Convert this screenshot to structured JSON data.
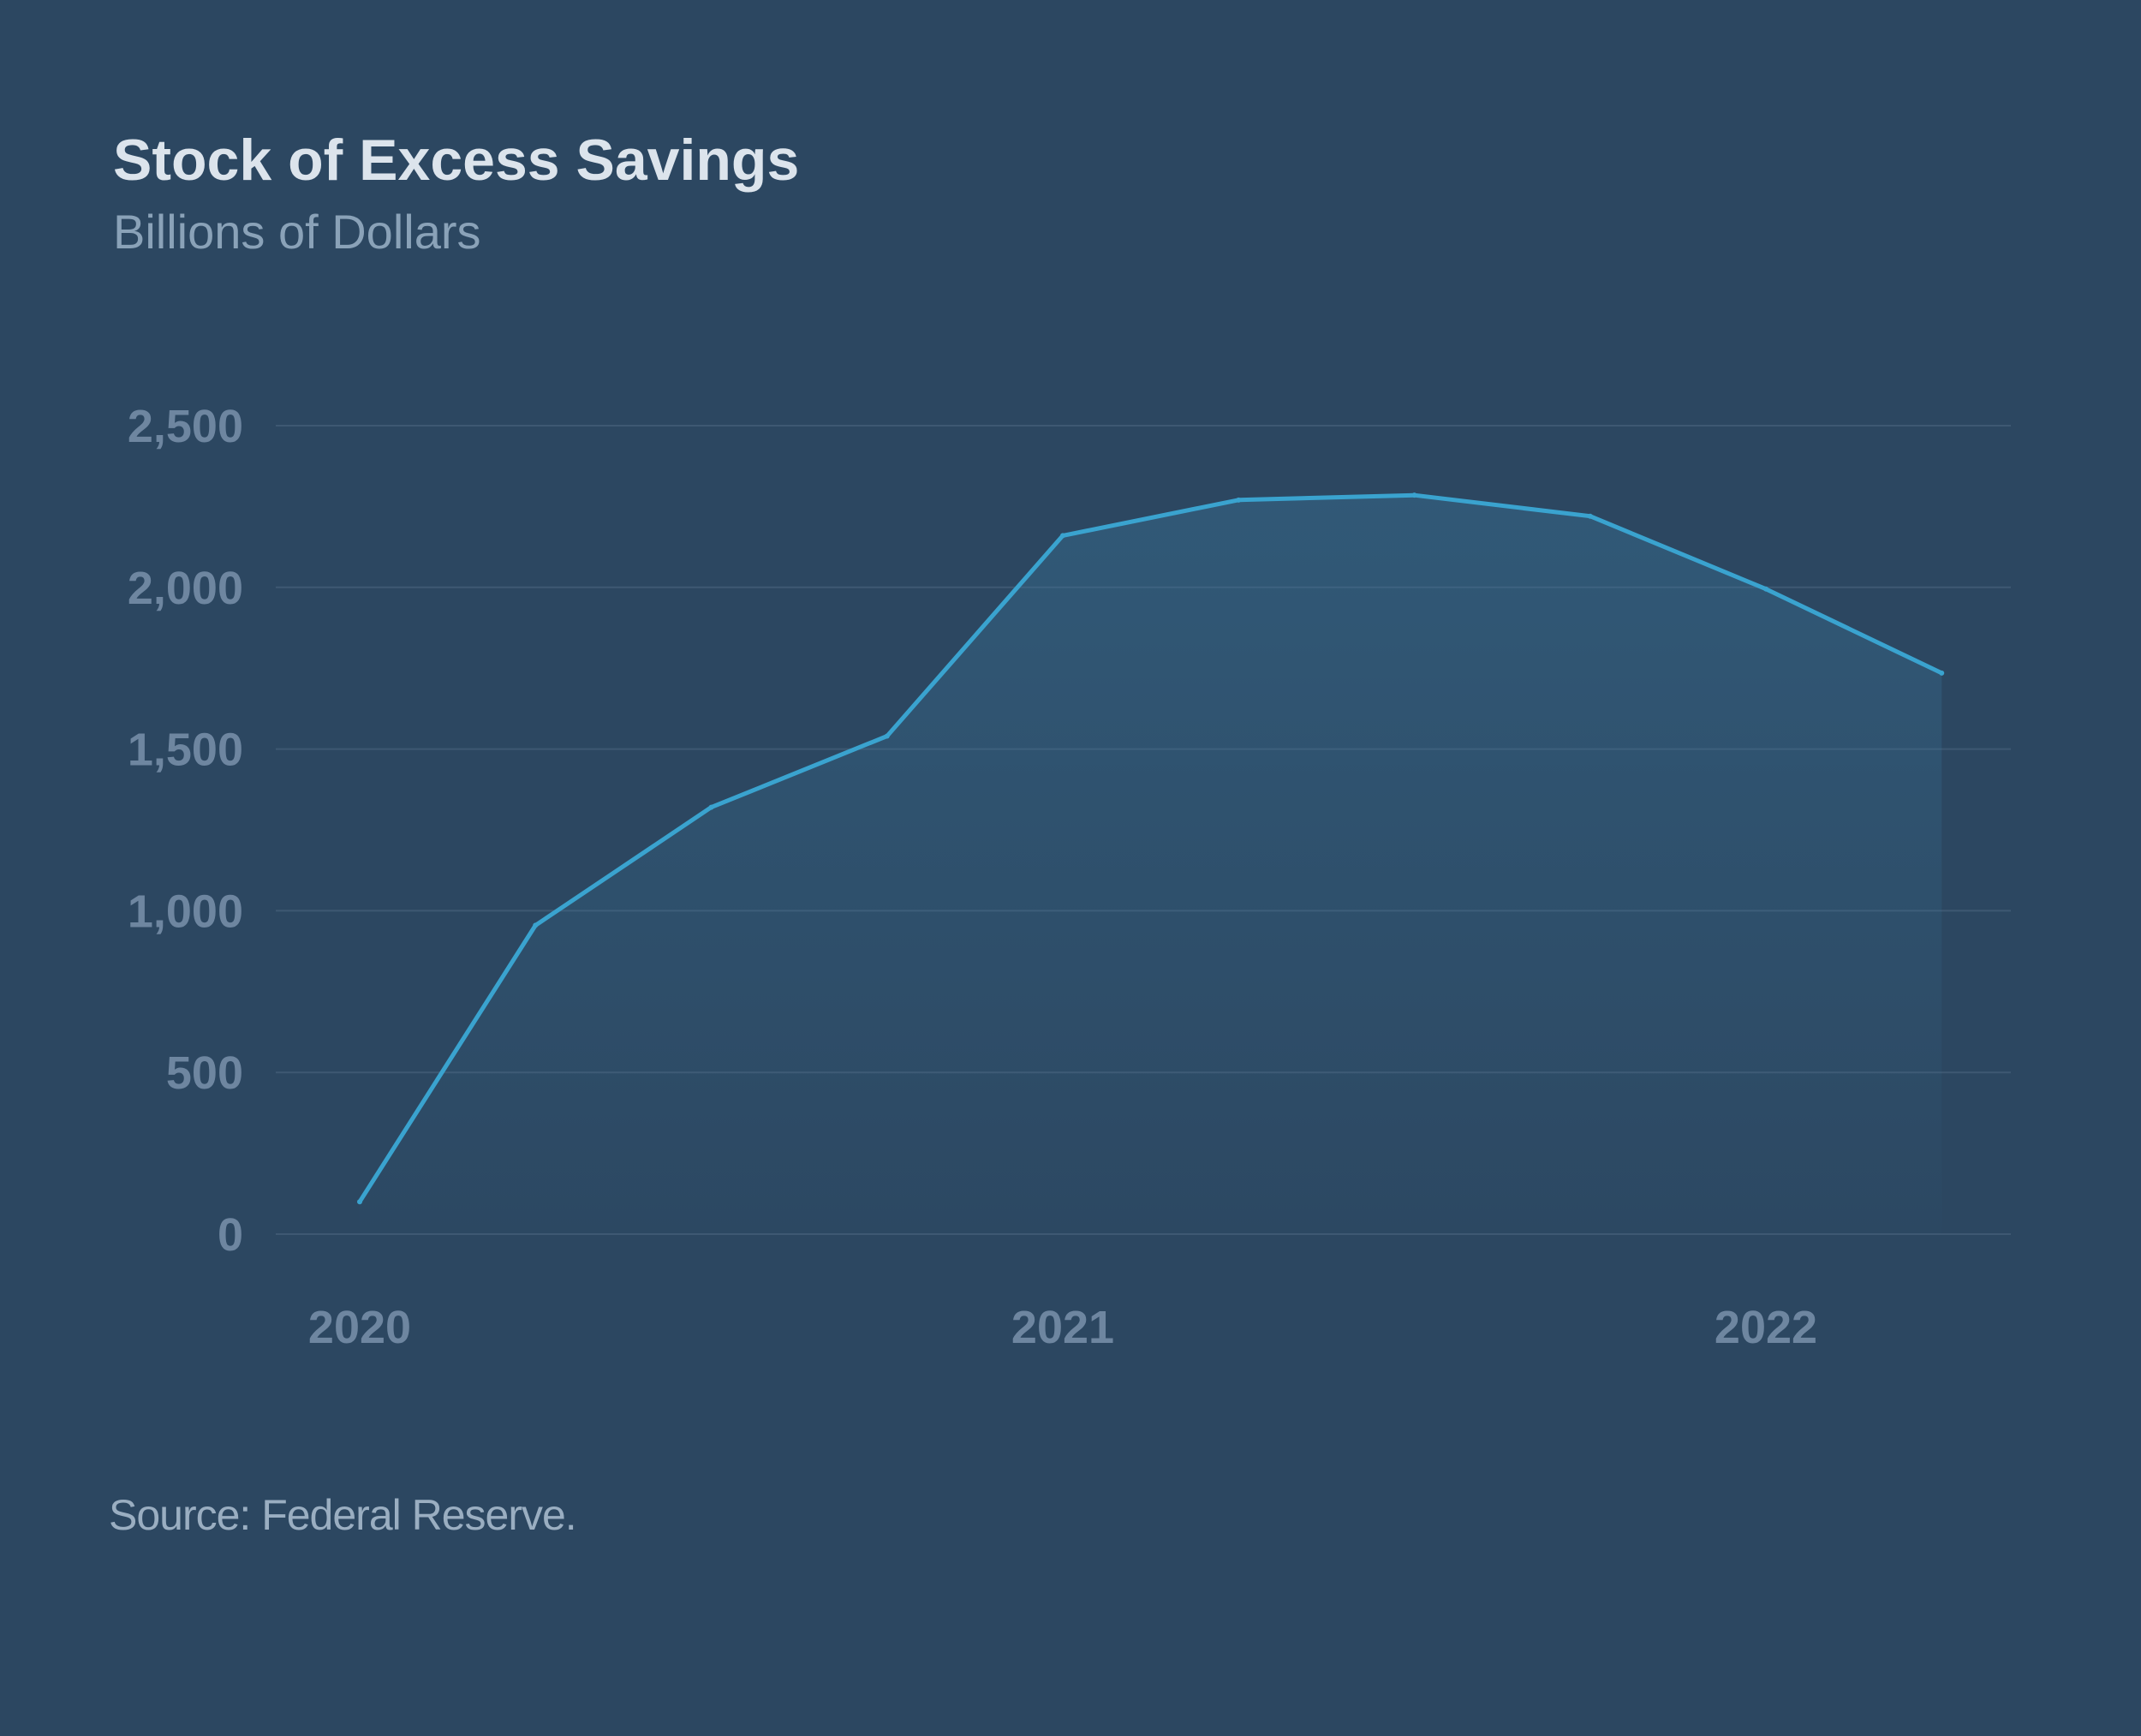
{
  "chart_data": {
    "type": "area",
    "title": "Stock of Excess Savings",
    "subtitle": "Billions of Dollars",
    "source": "Source: Federal Reserve.",
    "x": [
      2020.0,
      2020.25,
      2020.5,
      2020.75,
      2021.0,
      2021.25,
      2021.5,
      2021.75,
      2022.0,
      2022.25
    ],
    "series": [
      {
        "name": "Stock of Excess Savings",
        "values": [
          100,
          955,
          1320,
          1540,
          2160,
          2270,
          2285,
          2220,
          1995,
          1735
        ]
      }
    ],
    "ylim": [
      0,
      2500
    ],
    "xlim": [
      2020.0,
      2022.25
    ],
    "yticks": [
      0,
      500,
      1000,
      1500,
      2000,
      2500
    ],
    "ytick_labels": [
      "0",
      "500",
      "1,000",
      "1,500",
      "2,000",
      "2,500"
    ],
    "xticks": [
      2020,
      2021,
      2022
    ],
    "xtick_labels": [
      "2020",
      "2021",
      "2022"
    ],
    "grid": true,
    "colors": {
      "background": "#2c4761",
      "line": "#3aa3cf",
      "grid": "#3e5872",
      "fill_top": "#3a7aa0",
      "tick_label": "#6e86a0"
    }
  }
}
